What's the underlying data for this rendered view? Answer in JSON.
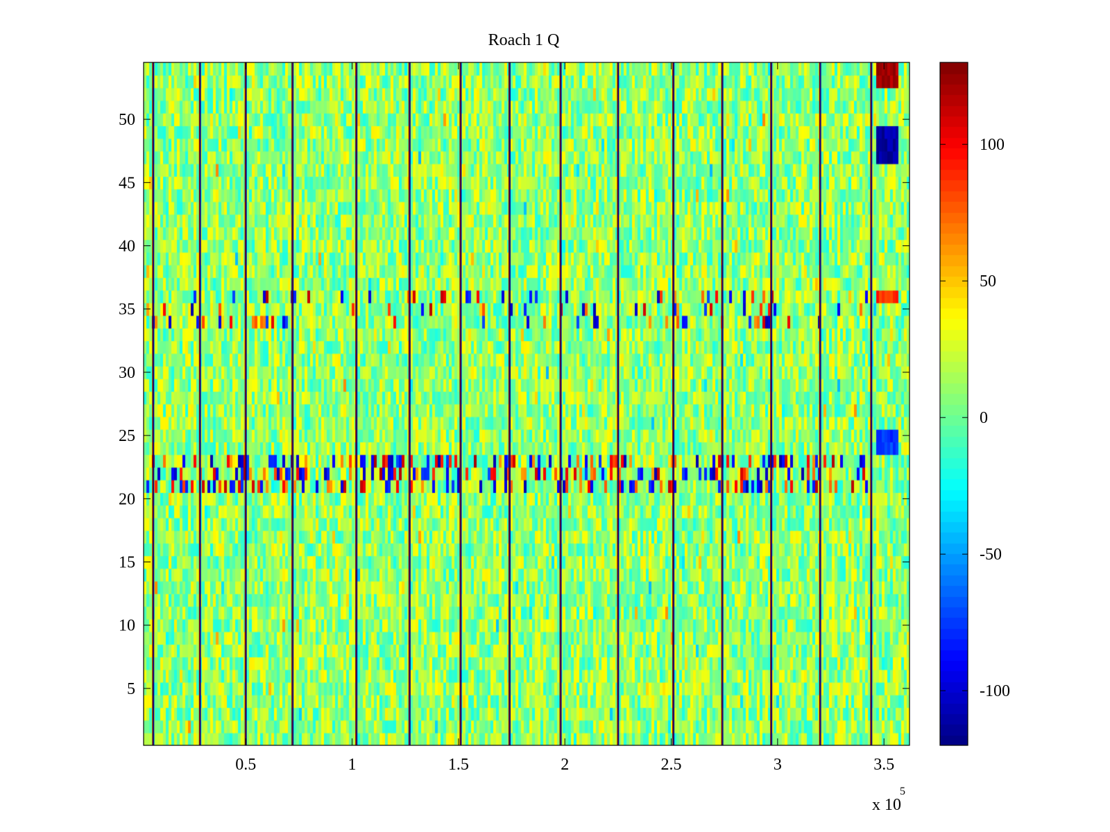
{
  "figure": {
    "title": "Roach 1 Q",
    "x_exponent_label": "x 10",
    "x_exponent_power": "5"
  },
  "chart_data": {
    "type": "heatmap",
    "title": "Roach 1 Q",
    "xlabel": "",
    "ylabel": "",
    "x_multiplier": 100000,
    "xlim": [
      2000,
      362000
    ],
    "ylim": [
      0.5,
      54.5
    ],
    "x_ticks": [
      0.5,
      1,
      1.5,
      2,
      2.5,
      3,
      3.5
    ],
    "x_tick_labels": [
      "0.5",
      "1",
      "1.5",
      "2",
      "2.5",
      "3",
      "3.5"
    ],
    "y_ticks": [
      5,
      10,
      15,
      20,
      25,
      30,
      35,
      40,
      45,
      50
    ],
    "y_tick_labels": [
      "5",
      "10",
      "15",
      "20",
      "25",
      "30",
      "35",
      "40",
      "45",
      "50"
    ],
    "colormap": "jet",
    "clim": [
      -120,
      130
    ],
    "colorbar_ticks": [
      -100,
      -50,
      0,
      50,
      100
    ],
    "colorbar_tick_labels": [
      "-100",
      "-50",
      "0",
      "50",
      "100"
    ],
    "rows": 54,
    "vertical_stripes_x": [
      6500,
      28500,
      50000,
      72000,
      102000,
      127000,
      151000,
      174000,
      198000,
      225000,
      251000,
      274000,
      297000,
      320000,
      344000
    ],
    "active_row_bands": [
      {
        "rows": [
          21,
          23
        ],
        "description": "strong alternating bursts"
      },
      {
        "rows": [
          34,
          36
        ],
        "description": "moderate bursts"
      },
      {
        "rows": [
          47,
          49
        ],
        "x_range": [
          346000,
          356000
        ],
        "value": -110
      },
      {
        "rows": [
          53,
          54
        ],
        "x_range": [
          346000,
          356000
        ],
        "value": 120
      },
      {
        "rows": [
          24,
          25
        ],
        "x_range": [
          346000,
          356000
        ],
        "value": -75
      },
      {
        "rows": [
          36,
          36
        ],
        "x_range": [
          346000,
          356000
        ],
        "value": 90
      }
    ],
    "background_range": [
      -20,
      40
    ],
    "grid": false,
    "colorbar_position": "right"
  }
}
